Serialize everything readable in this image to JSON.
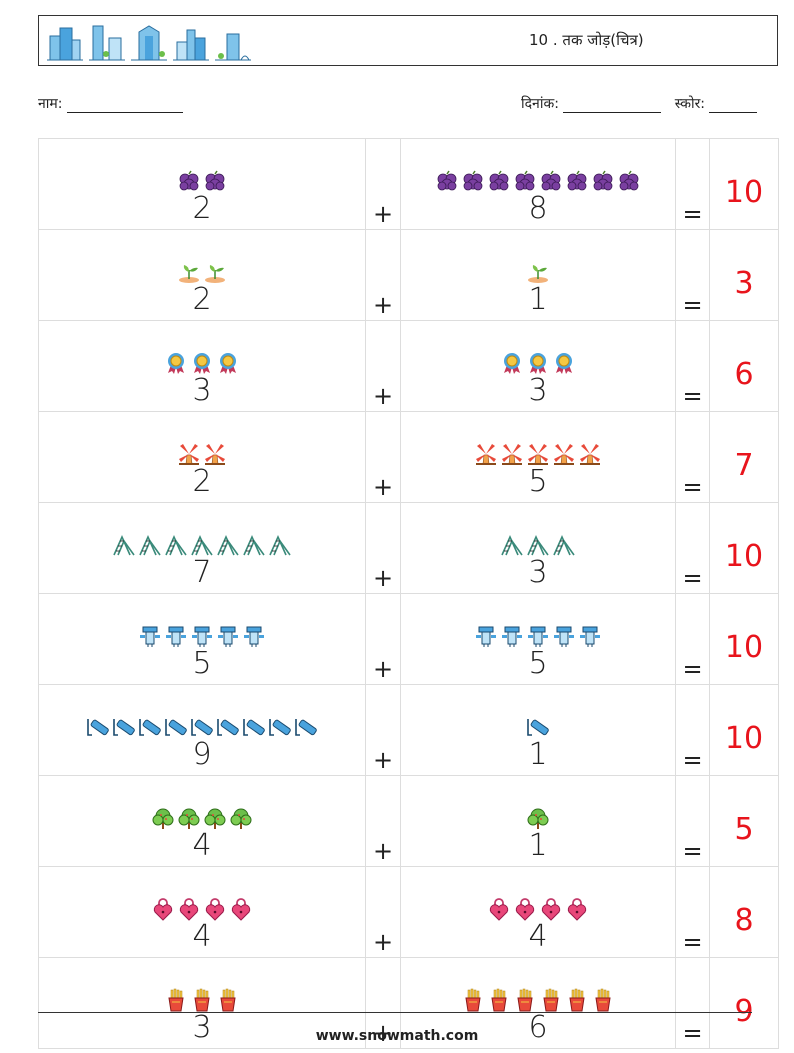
{
  "header": {
    "title": "10 . तक जोड़(चित्र)",
    "building_icons": [
      "office-building-icon",
      "city-building-icon",
      "tower-building-icon",
      "factory-building-icon",
      "park-building-icon"
    ]
  },
  "info": {
    "name_label": "नाम:",
    "date_label": "दिनांक:",
    "score_label": "स्कोर:"
  },
  "plus": "+",
  "equals": "=",
  "rows": [
    {
      "icon": "grape-icon",
      "a": "2",
      "b": "8",
      "sum": "10"
    },
    {
      "icon": "sprout-icon",
      "a": "2",
      "b": "1",
      "sum": "3"
    },
    {
      "icon": "medal-icon",
      "a": "3",
      "b": "3",
      "sum": "6"
    },
    {
      "icon": "windmill-icon",
      "a": "2",
      "b": "5",
      "sum": "7"
    },
    {
      "icon": "staircase-icon",
      "a": "7",
      "b": "3",
      "sum": "10"
    },
    {
      "icon": "robot-icon",
      "a": "5",
      "b": "5",
      "sum": "10"
    },
    {
      "icon": "battery-icon",
      "a": "9",
      "b": "1",
      "sum": "10"
    },
    {
      "icon": "tree-icon",
      "a": "4",
      "b": "1",
      "sum": "5"
    },
    {
      "icon": "heart-lock-icon",
      "a": "4",
      "b": "4",
      "sum": "8"
    },
    {
      "icon": "fries-icon",
      "a": "3",
      "b": "6",
      "sum": "9"
    }
  ],
  "footer": {
    "site": "www.snowmath.com"
  }
}
